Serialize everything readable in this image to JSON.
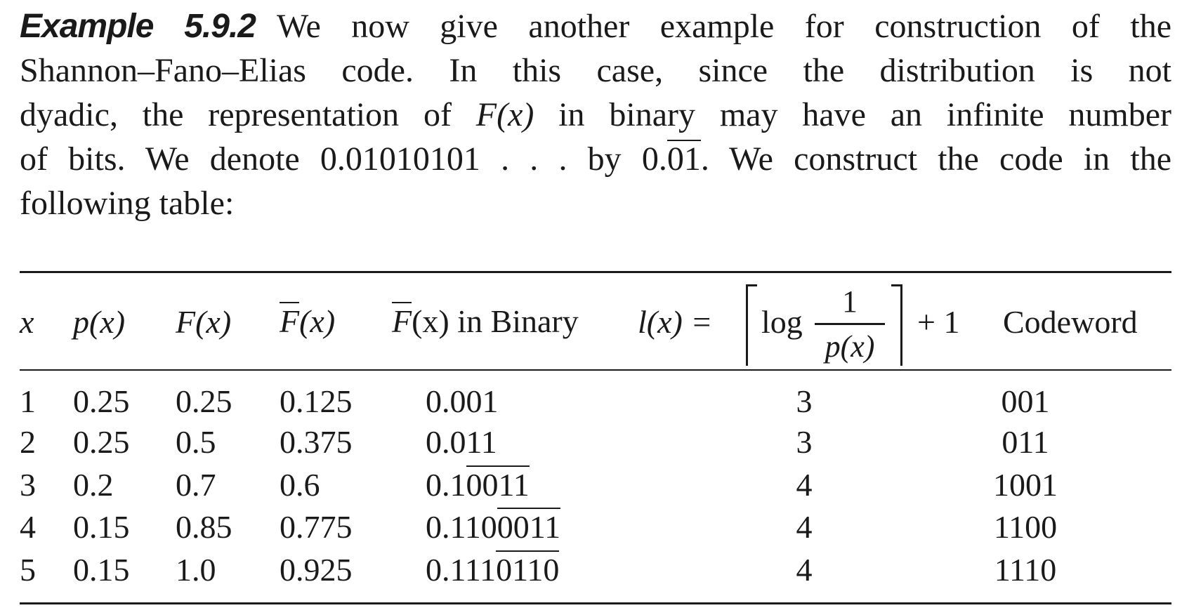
{
  "paragraph": {
    "heading": "Example 5.9.2",
    "line1": "We now give another example for construction of the",
    "line2": "Shannon–Fano–Elias code. In this case, since the distribution is not",
    "line3_a": "dyadic, the representation of ",
    "line3_fx": "F(x)",
    "line3_b": " in binary may have an infinite number",
    "line4_a": "of bits. We denote 0.01010101 . . . by 0.",
    "line4_ol": "01",
    "line4_b": ". We construct the code in the",
    "line5": "following table:"
  },
  "table": {
    "headers": {
      "x": "x",
      "px": "p(x)",
      "Fx": "F(x)",
      "Fbar_letter": "F",
      "Fbar_rest": "(x)",
      "Fbin_letter": "F",
      "Fbin_rest": "(x) in Binary",
      "lx_left": "l(x) =",
      "lx_log": "log",
      "lx_num": "1",
      "lx_den": "p(x)",
      "lx_right": "+ 1",
      "codeword": "Codeword"
    },
    "rows": [
      {
        "x": "1",
        "p": "0.25",
        "F": "0.25",
        "Fbar": "0.125",
        "bin_pre": "0.001",
        "bin_ol": "",
        "l": "3",
        "code": "001"
      },
      {
        "x": "2",
        "p": "0.25",
        "F": "0.5",
        "Fbar": "0.375",
        "bin_pre": "0.011",
        "bin_ol": "",
        "l": "3",
        "code": "011"
      },
      {
        "x": "3",
        "p": "0.2",
        "F": "0.7",
        "Fbar": "0.6",
        "bin_pre": "0.1",
        "bin_ol": "0011",
        "l": "4",
        "code": "1001"
      },
      {
        "x": "4",
        "p": "0.15",
        "F": "0.85",
        "Fbar": "0.775",
        "bin_pre": "0.110",
        "bin_ol": "0011",
        "l": "4",
        "code": "1100"
      },
      {
        "x": "5",
        "p": "0.15",
        "F": "1.0",
        "Fbar": "0.925",
        "bin_pre": "0.111",
        "bin_ol": "0110",
        "l": "4",
        "code": "1110"
      }
    ]
  }
}
